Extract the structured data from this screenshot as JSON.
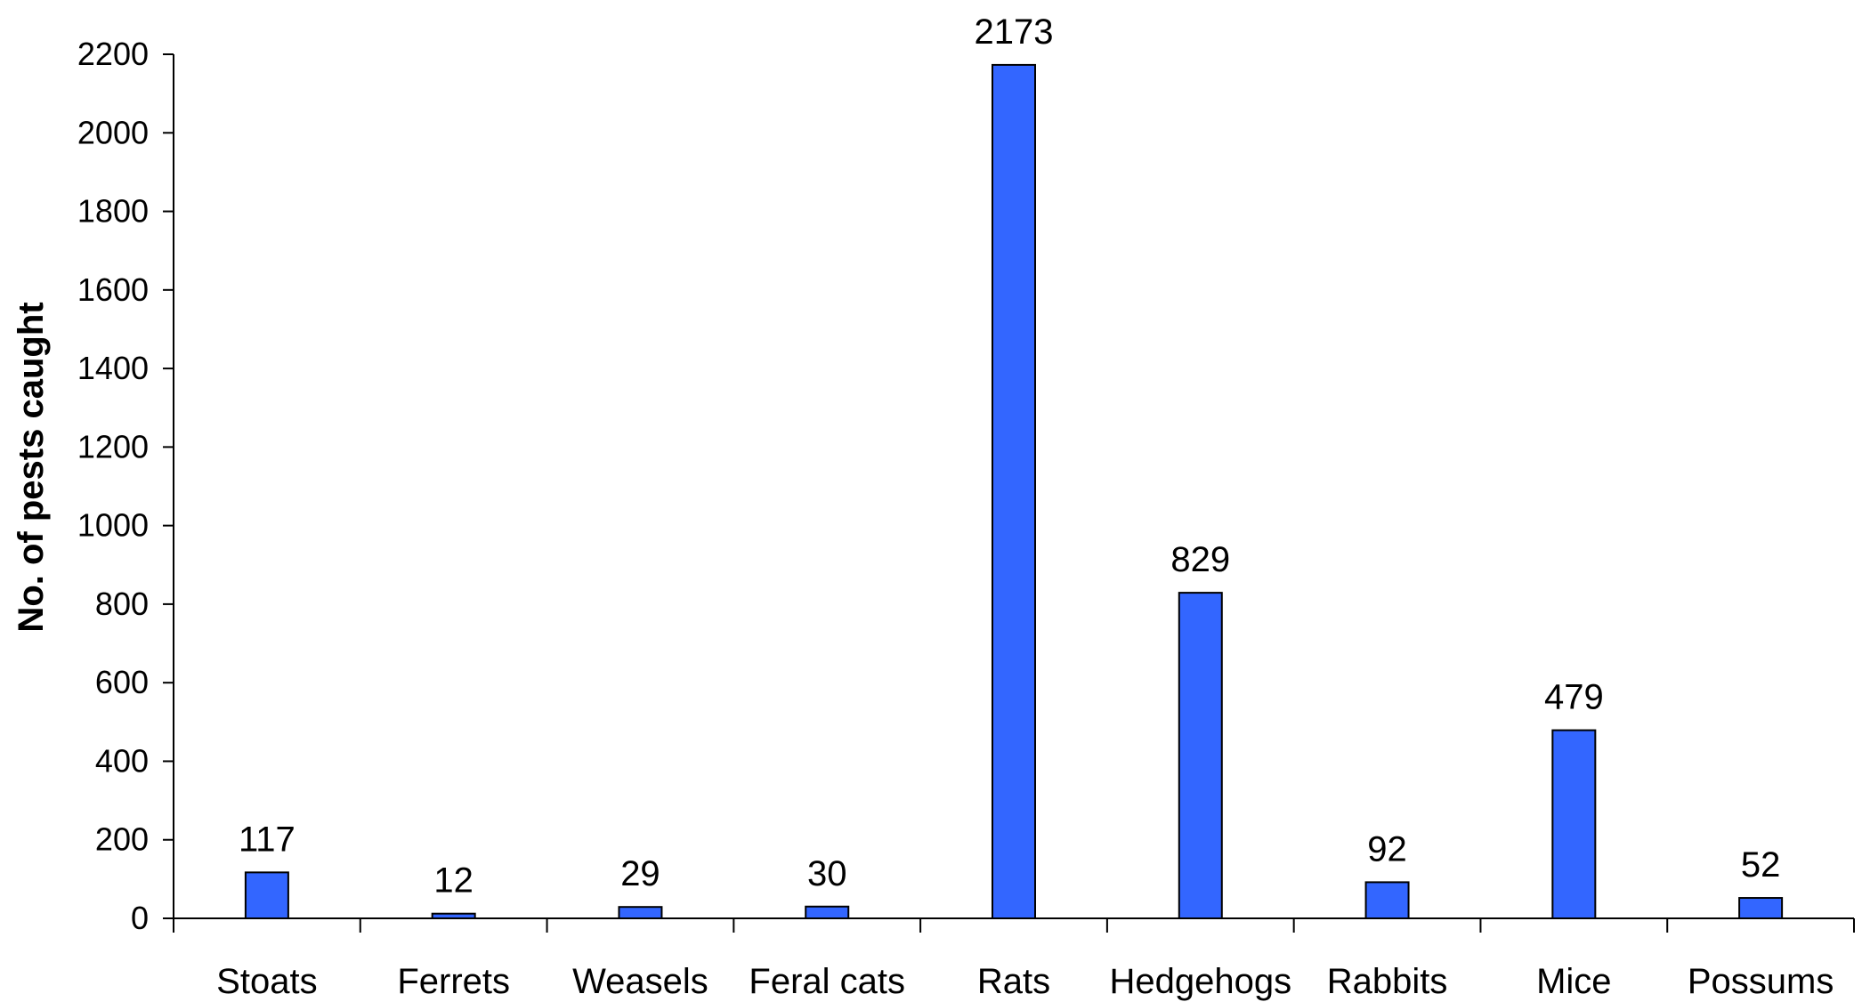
{
  "chart_data": {
    "type": "bar",
    "title": "",
    "xlabel": "",
    "ylabel": "No. of pests caught",
    "categories": [
      "Stoats",
      "Ferrets",
      "Weasels",
      "Feral cats",
      "Rats",
      "Hedgehogs",
      "Rabbits",
      "Mice",
      "Possums"
    ],
    "values": [
      117,
      12,
      29,
      30,
      2173,
      829,
      92,
      479,
      52
    ],
    "data_labels": [
      "117",
      "12",
      "29",
      "30",
      "2173",
      "829",
      "92",
      "479",
      "52"
    ],
    "ylim": [
      0,
      2200
    ],
    "yticks": [
      0,
      200,
      400,
      600,
      800,
      1000,
      1200,
      1400,
      1600,
      1800,
      2000,
      2200
    ],
    "grid": false,
    "legend": "none",
    "bar_color": "#3366ff",
    "bar_edge_color": "#000000"
  }
}
